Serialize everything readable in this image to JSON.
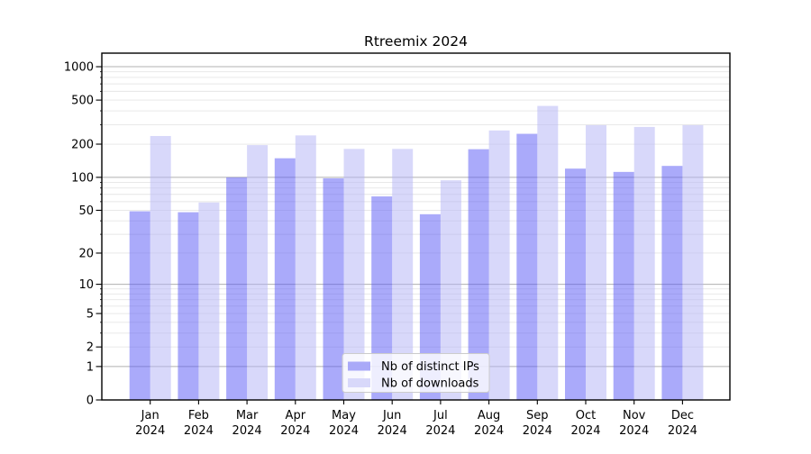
{
  "chart_data": {
    "type": "bar",
    "title": "Rtreemix 2024",
    "xlabel": "",
    "ylabel": "",
    "yscale": "log1p",
    "yticks": [
      0,
      1,
      2,
      5,
      10,
      20,
      50,
      100,
      200,
      500,
      1000
    ],
    "ylim": [
      0,
      1300
    ],
    "grid": "on",
    "legend_position": "lower center",
    "categories": [
      "Jan",
      "Feb",
      "Mar",
      "Apr",
      "May",
      "Jun",
      "Jul",
      "Aug",
      "Sep",
      "Oct",
      "Nov",
      "Dec"
    ],
    "x_sublabel": "2024",
    "series": [
      {
        "name": "Nb of distinct IPs",
        "color": "#a9a9f8",
        "fill_rgba": "rgba(85,85,245,0.5)",
        "values": [
          49,
          48,
          100,
          149,
          98,
          67,
          46,
          180,
          248,
          120,
          112,
          127
        ]
      },
      {
        "name": "Nb of downloads",
        "color": "#d8d8fa",
        "fill_rgba": "rgba(177,177,245,0.5)",
        "values": [
          237,
          59,
          196,
          240,
          181,
          181,
          94,
          266,
          443,
          297,
          286,
          297
        ]
      }
    ],
    "colors": {
      "major_grid": "#b0b0b0",
      "minor_grid": "#e6e6e6",
      "spine": "#000000",
      "legend_border": "#cccccc",
      "legend_bg": "rgba(255,255,255,0.8)",
      "background": "#ffffff"
    }
  }
}
